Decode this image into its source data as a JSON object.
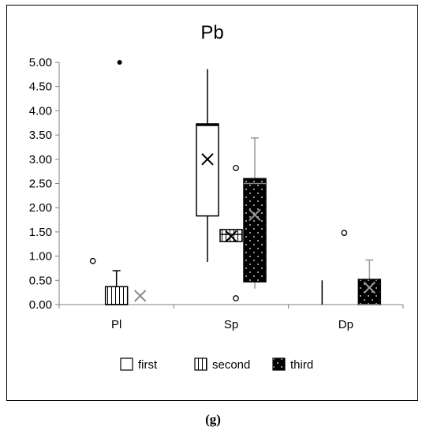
{
  "caption": "(g)",
  "chart_data": {
    "type": "box",
    "title": "Pb",
    "xlabel": "",
    "ylabel": "",
    "ylim": [
      0,
      5
    ],
    "yticks": [
      "0.00",
      "0.50",
      "1.00",
      "1.50",
      "2.00",
      "2.50",
      "3.00",
      "3.50",
      "4.00",
      "4.50",
      "5.00"
    ],
    "categories": [
      "Pl",
      "Sp",
      "Dp"
    ],
    "grid": false,
    "legend_position": "bottom",
    "series": [
      {
        "name": "first",
        "pattern": "plain",
        "boxes": [
          null,
          {
            "min": 0.88,
            "q1": 1.83,
            "median": 3.71,
            "q3": 3.73,
            "max": 4.86,
            "mean": 3.0,
            "outliers": [
              2.82,
              0.13
            ]
          },
          {
            "min": 0.0,
            "q1": 0.0,
            "median": 0.0,
            "q3": 0.0,
            "max": 0.5,
            "mean": null,
            "outliers": [
              1.48
            ]
          }
        ]
      },
      {
        "name": "second",
        "pattern": "vertical-lines",
        "boxes": [
          {
            "min": 0.0,
            "q1": 0.0,
            "median": 0.0,
            "q3": 0.37,
            "max": 0.7,
            "mean": 0.18,
            "outliers": [
              0.9,
              5.0
            ]
          },
          {
            "min": 1.3,
            "q1": 1.3,
            "median": 1.45,
            "q3": 1.55,
            "max": 1.55,
            "mean": 1.41,
            "outliers": []
          },
          null
        ]
      },
      {
        "name": "third",
        "pattern": "black-dotted",
        "boxes": [
          null,
          {
            "min": 0.33,
            "q1": 0.47,
            "median": 2.5,
            "q3": 2.6,
            "max": 3.44,
            "mean": 1.85,
            "outliers": []
          },
          {
            "min": 0.0,
            "q1": 0.0,
            "median": 0.0,
            "q3": 0.52,
            "max": 0.92,
            "mean": 0.35,
            "outliers": []
          }
        ]
      }
    ]
  }
}
